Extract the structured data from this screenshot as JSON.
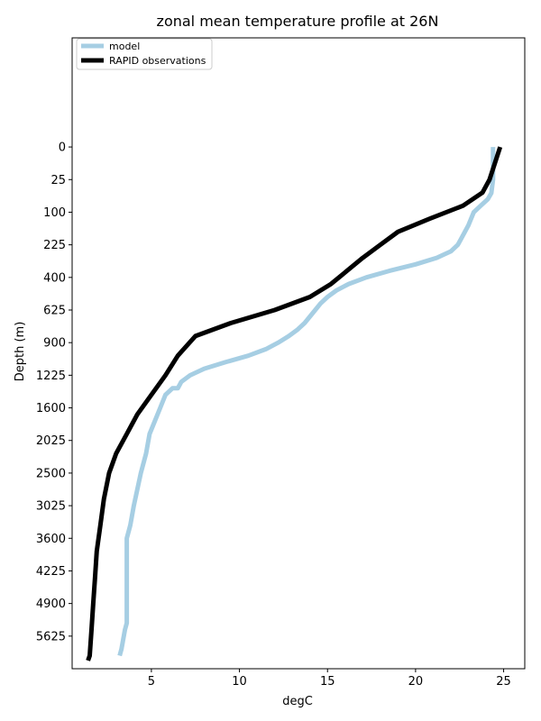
{
  "chart_data": {
    "type": "line",
    "title": "zonal mean temperature profile at 26N",
    "xlabel": "degC",
    "ylabel": "Depth (m)",
    "xlim": [
      0.5,
      26.2
    ],
    "xticks": [
      5,
      10,
      15,
      20,
      25
    ],
    "y_scale": "sqrt",
    "ylim": [
      6400,
      -280
    ],
    "yticks": [
      0,
      25,
      100,
      225,
      400,
      625,
      900,
      1225,
      1600,
      2025,
      2500,
      3025,
      3600,
      4225,
      4900,
      5625
    ],
    "grid": false,
    "legend_position": "top-left",
    "series": [
      {
        "name": "model",
        "color": "#a6cee3",
        "linewidth": 5,
        "points": [
          [
            24.4,
            0
          ],
          [
            24.4,
            25
          ],
          [
            24.3,
            50
          ],
          [
            24.1,
            64
          ],
          [
            23.7,
            81
          ],
          [
            23.3,
            100
          ],
          [
            23.0,
            144
          ],
          [
            22.8,
            169
          ],
          [
            22.6,
            196
          ],
          [
            22.4,
            225
          ],
          [
            22.0,
            256
          ],
          [
            21.2,
            289
          ],
          [
            20.0,
            324
          ],
          [
            18.5,
            361
          ],
          [
            17.2,
            400
          ],
          [
            16.2,
            441
          ],
          [
            15.5,
            484
          ],
          [
            15.0,
            529
          ],
          [
            14.6,
            576
          ],
          [
            14.3,
            625
          ],
          [
            13.7,
            729
          ],
          [
            13.3,
            784
          ],
          [
            12.8,
            841
          ],
          [
            12.2,
            900
          ],
          [
            11.5,
            961
          ],
          [
            10.5,
            1024
          ],
          [
            9.2,
            1089
          ],
          [
            8.0,
            1156
          ],
          [
            7.2,
            1225
          ],
          [
            6.7,
            1296
          ],
          [
            6.5,
            1369
          ],
          [
            6.2,
            1369
          ],
          [
            5.8,
            1444
          ],
          [
            5.5,
            1600
          ],
          [
            5.2,
            1764
          ],
          [
            4.9,
            1936
          ],
          [
            4.7,
            2209
          ],
          [
            4.4,
            2500
          ],
          [
            4.0,
            3025
          ],
          [
            3.8,
            3364
          ],
          [
            3.6,
            3600
          ],
          [
            3.6,
            4225
          ],
          [
            3.6,
            4900
          ],
          [
            3.6,
            5329
          ],
          [
            3.5,
            5476
          ],
          [
            3.3,
            5929
          ],
          [
            3.2,
            6084
          ]
        ]
      },
      {
        "name": "RAPID observations",
        "color": "#000000",
        "linewidth": 5,
        "points": [
          [
            24.8,
            0
          ],
          [
            24.2,
            25
          ],
          [
            23.8,
            49
          ],
          [
            22.7,
            81
          ],
          [
            20.8,
            121
          ],
          [
            19.0,
            169
          ],
          [
            18.0,
            225
          ],
          [
            17.0,
            289
          ],
          [
            16.1,
            361
          ],
          [
            15.2,
            441
          ],
          [
            14.0,
            529
          ],
          [
            12.0,
            625
          ],
          [
            9.5,
            729
          ],
          [
            7.5,
            841
          ],
          [
            6.5,
            1024
          ],
          [
            5.8,
            1225
          ],
          [
            5.0,
            1444
          ],
          [
            4.2,
            1681
          ],
          [
            3.6,
            1936
          ],
          [
            3.0,
            2209
          ],
          [
            2.6,
            2500
          ],
          [
            2.3,
            2916
          ],
          [
            2.1,
            3364
          ],
          [
            1.9,
            3844
          ],
          [
            1.8,
            4356
          ],
          [
            1.7,
            4900
          ],
          [
            1.6,
            5476
          ],
          [
            1.5,
            6084
          ],
          [
            1.4,
            6200
          ]
        ]
      }
    ]
  }
}
